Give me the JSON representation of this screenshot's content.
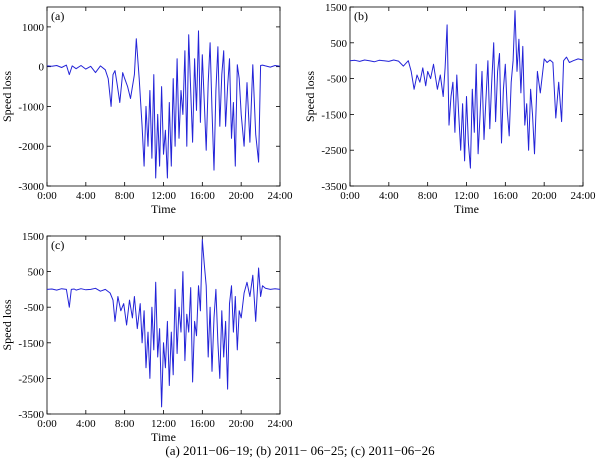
{
  "caption": "(a) 2011−06−19; (b) 2011− 06−25; (c) 2011−06−26",
  "chart_data": [
    {
      "type": "line",
      "panel_label": "(a)",
      "xlabel": "Time",
      "ylabel": "Speed loss",
      "xlim": [
        0,
        24
      ],
      "ylim": [
        -3000,
        1500
      ],
      "x_ticks": [
        "0:00",
        "4:00",
        "8:00",
        "12:00",
        "16:00",
        "20:00",
        "24:00"
      ],
      "y_ticks": [
        1000,
        0,
        -1000,
        -2000,
        -3000
      ],
      "grid": false,
      "color": "#2323d8",
      "series": [
        {
          "x": [
            0,
            0.5,
            1,
            1.5,
            2,
            2.3,
            2.6,
            3,
            3.5,
            4,
            4.5,
            5,
            5.5,
            6,
            6.3,
            6.6,
            6.8,
            7,
            7.2,
            7.5,
            7.8,
            8,
            8.3,
            8.6,
            9,
            9.2,
            9.5,
            9.8,
            10,
            10.2,
            10.4,
            10.6,
            10.8,
            11,
            11.2,
            11.4,
            11.6,
            11.8,
            12,
            12.2,
            12.4,
            12.6,
            12.8,
            13,
            13.2,
            13.4,
            13.6,
            13.8,
            14,
            14.2,
            14.4,
            14.6,
            14.8,
            15,
            15.2,
            15.4,
            15.6,
            15.8,
            16,
            16.2,
            16.4,
            16.6,
            16.8,
            17,
            17.2,
            17.4,
            17.6,
            17.8,
            18,
            18.2,
            18.4,
            18.6,
            18.8,
            19,
            19.2,
            19.4,
            19.6,
            19.8,
            20,
            20.3,
            20.6,
            20.9,
            21.2,
            21.5,
            21.8,
            22,
            22.2,
            22.5,
            23,
            23.5,
            24
          ],
          "y": [
            20,
            10,
            30,
            -20,
            40,
            -200,
            20,
            -50,
            30,
            -60,
            10,
            -150,
            20,
            -80,
            -300,
            -1000,
            -200,
            -100,
            -400,
            -900,
            -150,
            -300,
            -500,
            -800,
            -200,
            700,
            -300,
            -1500,
            -2500,
            -1000,
            -2000,
            -600,
            -2300,
            -200,
            -2800,
            -1200,
            -2500,
            -500,
            -2200,
            -1600,
            -2800,
            -900,
            -2500,
            -300,
            -2000,
            200,
            -1800,
            -600,
            -1200,
            400,
            -2000,
            800,
            -600,
            -1900,
            200,
            -1100,
            900,
            -1400,
            300,
            -900,
            -2100,
            -400,
            600,
            -1100,
            -2600,
            -600,
            500,
            -1500,
            -200,
            400,
            -1500,
            -500,
            200,
            -1800,
            -900,
            -2500,
            50,
            -300,
            -1200,
            -2000,
            -400,
            -1900,
            50,
            -1700,
            -2400,
            30,
            40,
            20,
            -10,
            30,
            10
          ]
        }
      ]
    },
    {
      "type": "line",
      "panel_label": "(b)",
      "xlabel": "Time",
      "ylabel": "Speed loss",
      "xlim": [
        0,
        24
      ],
      "ylim": [
        -3500,
        1500
      ],
      "x_ticks": [
        "0:00",
        "4:00",
        "8:00",
        "12:00",
        "16:00",
        "20:00",
        "24:00"
      ],
      "y_ticks": [
        1500,
        500,
        -500,
        -1500,
        -2500,
        -3500
      ],
      "grid": false,
      "color": "#2323d8",
      "series": [
        {
          "x": [
            0,
            0.5,
            1,
            1.5,
            2,
            2.5,
            3,
            3.5,
            4,
            4.5,
            5,
            5.5,
            6,
            6.3,
            6.6,
            6.9,
            7.2,
            7.5,
            7.8,
            8,
            8.3,
            8.6,
            9,
            9.3,
            9.6,
            9.8,
            10,
            10.2,
            10.4,
            10.6,
            10.8,
            11,
            11.2,
            11.4,
            11.6,
            11.8,
            12,
            12.2,
            12.4,
            12.6,
            12.8,
            13,
            13.2,
            13.4,
            13.6,
            13.8,
            14,
            14.2,
            14.4,
            14.6,
            14.8,
            15,
            15.2,
            15.4,
            15.6,
            15.8,
            16,
            16.2,
            16.4,
            16.6,
            16.8,
            17,
            17.2,
            17.4,
            17.6,
            17.8,
            18,
            18.2,
            18.4,
            18.6,
            18.8,
            19,
            19.3,
            19.6,
            20,
            20.3,
            20.6,
            20.9,
            21.2,
            21.5,
            21.8,
            22,
            22.3,
            22.6,
            23,
            23.5,
            24
          ],
          "y": [
            0,
            10,
            -20,
            20,
            0,
            -30,
            10,
            0,
            -20,
            20,
            -10,
            -150,
            0,
            -300,
            -800,
            -400,
            -600,
            -200,
            -700,
            -300,
            -500,
            -100,
            -800,
            -400,
            -1000,
            -200,
            1000,
            -1800,
            -1000,
            -600,
            -2000,
            -400,
            -1500,
            -2500,
            -1200,
            -2800,
            -1000,
            -2300,
            -3000,
            -800,
            -2000,
            -100,
            -2600,
            -1500,
            -300,
            -2200,
            -1100,
            0,
            -1900,
            -600,
            500,
            -1700,
            -300,
            200,
            -2300,
            -800,
            -100,
            -1400,
            -2100,
            -600,
            0,
            1400,
            -300,
            600,
            -900,
            400,
            -1800,
            -1200,
            -2500,
            -800,
            -1500,
            -2600,
            -300,
            -900,
            50,
            -50,
            20,
            -50,
            -1600,
            -600,
            -1700,
            0,
            100,
            -50,
            0,
            50,
            20
          ]
        }
      ]
    },
    {
      "type": "line",
      "panel_label": "(c)",
      "xlabel": "Time",
      "ylabel": "Speed loss",
      "xlim": [
        0,
        24
      ],
      "ylim": [
        -3500,
        1500
      ],
      "x_ticks": [
        "0:00",
        "4:00",
        "8:00",
        "12:00",
        "16:00",
        "20:00",
        "24:00"
      ],
      "y_ticks": [
        1500,
        500,
        -500,
        -1500,
        -2500,
        -3500
      ],
      "grid": false,
      "color": "#2323d8",
      "series": [
        {
          "x": [
            0,
            0.5,
            1,
            1.5,
            2,
            2.3,
            2.5,
            2.8,
            3,
            3.5,
            4,
            4.5,
            5,
            5.5,
            6,
            6.5,
            6.8,
            7,
            7.3,
            7.6,
            7.9,
            8.2,
            8.5,
            8.8,
            9,
            9.3,
            9.6,
            9.8,
            10,
            10.2,
            10.4,
            10.6,
            10.8,
            11,
            11.2,
            11.4,
            11.6,
            11.8,
            12,
            12.2,
            12.4,
            12.6,
            12.8,
            13,
            13.2,
            13.4,
            13.6,
            13.8,
            14,
            14.2,
            14.4,
            14.6,
            14.8,
            15,
            15.2,
            15.4,
            15.6,
            15.8,
            16,
            16.2,
            16.4,
            16.6,
            16.8,
            17,
            17.2,
            17.4,
            17.6,
            17.8,
            18,
            18.2,
            18.4,
            18.6,
            18.8,
            19,
            19.2,
            19.4,
            19.6,
            19.8,
            20,
            20.3,
            20.6,
            20.9,
            21.2,
            21.5,
            21.8,
            22,
            22.2,
            22.5,
            23,
            23.5,
            24
          ],
          "y": [
            0,
            10,
            -20,
            20,
            0,
            -500,
            0,
            10,
            -20,
            20,
            -10,
            0,
            30,
            -50,
            0,
            -100,
            -300,
            -900,
            -200,
            -600,
            -400,
            -1000,
            -300,
            -800,
            -200,
            -1100,
            -400,
            -1500,
            -600,
            -2200,
            -1200,
            -2500,
            -500,
            -1700,
            200,
            -1900,
            -1100,
            -3300,
            -1500,
            -2200,
            -900,
            -2700,
            -1200,
            -2400,
            0,
            -1800,
            -500,
            -1200,
            500,
            -2000,
            -700,
            -1200,
            50,
            -2600,
            -900,
            -1300,
            100,
            -600,
            1400,
            700,
            100,
            -1900,
            -500,
            -2300,
            -800,
            0,
            -1500,
            -2500,
            -600,
            -1900,
            -900,
            -2800,
            -400,
            100,
            -1200,
            -200,
            -1700,
            -600,
            -800,
            -100,
            200,
            -200,
            400,
            -900,
            600,
            -200,
            100,
            30,
            0,
            20,
            0
          ]
        }
      ]
    }
  ]
}
